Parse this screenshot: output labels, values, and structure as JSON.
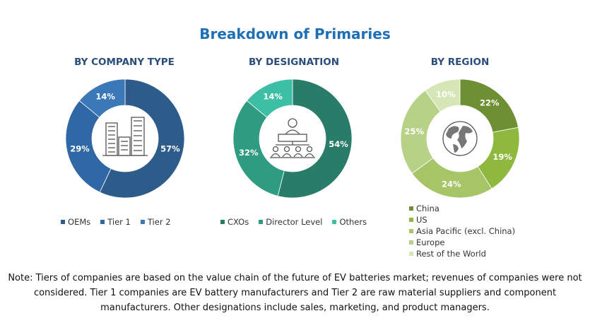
{
  "title": "Breakdown of Primaries",
  "note": "Note: Tiers of companies are based on the value chain of the future of EV batteries market; revenues of companies were not considered. Tier 1 companies are EV battery manufacturers and Tier 2 are raw material suppliers and component manufacturers. Other designations include sales, marketing, and product managers.",
  "chart_data": [
    {
      "type": "pie",
      "title": "BY COMPANY TYPE",
      "icon": "buildings-icon",
      "categories": [
        "OEMs",
        "Tier 1",
        "Tier 2"
      ],
      "values": [
        57,
        29,
        14
      ],
      "labels": [
        "57%",
        "29%",
        "14%"
      ],
      "colors": [
        "#2e5c8a",
        "#2f68a4",
        "#3a78b8"
      ],
      "legend_position": "bottom"
    },
    {
      "type": "pie",
      "title": "BY DESIGNATION",
      "icon": "org-chart-icon",
      "categories": [
        "CXOs",
        "Director Level",
        "Others"
      ],
      "values": [
        54,
        32,
        14
      ],
      "labels": [
        "54%",
        "32%",
        "14%"
      ],
      "colors": [
        "#287c68",
        "#2f9b80",
        "#3dbfa6"
      ],
      "legend_position": "bottom"
    },
    {
      "type": "pie",
      "title": "BY REGION",
      "icon": "globe-icon",
      "categories": [
        "China",
        "US",
        "Asia Pacific (excl. China)",
        "Europe",
        "Rest of the World"
      ],
      "values": [
        22,
        19,
        24,
        25,
        10
      ],
      "labels": [
        "22%",
        "19%",
        "24%",
        "25%",
        "10%"
      ],
      "colors": [
        "#6f8f34",
        "#8fb83f",
        "#a6c566",
        "#b7d187",
        "#d6e6b7"
      ],
      "label_colors": [
        "#ffffff",
        "#ffffff",
        "#ffffff",
        "#ffffff",
        "#ffffff"
      ],
      "legend_position": "bottom"
    }
  ]
}
